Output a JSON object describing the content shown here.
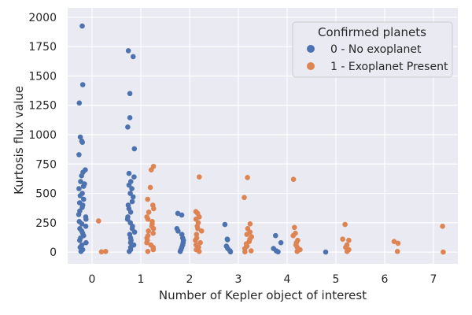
{
  "chart_data": {
    "type": "scatter",
    "title": "",
    "xlabel": "Number of Kepler object of interest",
    "ylabel": "Kurtosis flux value",
    "x_categories": [
      "0",
      "1",
      "2",
      "3",
      "4",
      "5",
      "6",
      "7"
    ],
    "y_ticks": [
      0,
      250,
      500,
      750,
      1000,
      1250,
      1500,
      1750,
      2000
    ],
    "y_tick_labels": [
      "0",
      "250",
      "500",
      "750",
      "1000",
      "1250",
      "1500",
      "1750",
      "2000"
    ],
    "ylim": [
      -100,
      2080
    ],
    "grid": true,
    "legend": {
      "title": "Confirmed planets",
      "placement": "top-right",
      "entries": [
        "0 - No exoplanet",
        "1 - Exoplanet Present"
      ]
    },
    "colors": [
      "#4c72b0",
      "#dd8452"
    ],
    "series": [
      {
        "name": "0 - No exoplanet",
        "category_offset": -0.2,
        "points": [
          [
            0,
            1925
          ],
          [
            0,
            1425
          ],
          [
            0,
            1270
          ],
          [
            0,
            980
          ],
          [
            0,
            945
          ],
          [
            0,
            935
          ],
          [
            0,
            830
          ],
          [
            0,
            700
          ],
          [
            0,
            680
          ],
          [
            0,
            650
          ],
          [
            0,
            600
          ],
          [
            0,
            580
          ],
          [
            0,
            560
          ],
          [
            0,
            540
          ],
          [
            0,
            500
          ],
          [
            0,
            480
          ],
          [
            0,
            450
          ],
          [
            0,
            420
          ],
          [
            0,
            400
          ],
          [
            0,
            380
          ],
          [
            0,
            350
          ],
          [
            0,
            320
          ],
          [
            0,
            300
          ],
          [
            0,
            280
          ],
          [
            0,
            260
          ],
          [
            0,
            240
          ],
          [
            0,
            220
          ],
          [
            0,
            200
          ],
          [
            0,
            180
          ],
          [
            0,
            160
          ],
          [
            0,
            140
          ],
          [
            0,
            120
          ],
          [
            0,
            100
          ],
          [
            0,
            80
          ],
          [
            0,
            60
          ],
          [
            0,
            40
          ],
          [
            0,
            20
          ],
          [
            0,
            5
          ],
          [
            1,
            1715
          ],
          [
            1,
            1665
          ],
          [
            1,
            1350
          ],
          [
            1,
            1145
          ],
          [
            1,
            1065
          ],
          [
            1,
            880
          ],
          [
            1,
            670
          ],
          [
            1,
            640
          ],
          [
            1,
            600
          ],
          [
            1,
            570
          ],
          [
            1,
            540
          ],
          [
            1,
            500
          ],
          [
            1,
            470
          ],
          [
            1,
            430
          ],
          [
            1,
            400
          ],
          [
            1,
            370
          ],
          [
            1,
            340
          ],
          [
            1,
            300
          ],
          [
            1,
            280
          ],
          [
            1,
            250
          ],
          [
            1,
            220
          ],
          [
            1,
            200
          ],
          [
            1,
            170
          ],
          [
            1,
            150
          ],
          [
            1,
            120
          ],
          [
            1,
            100
          ],
          [
            1,
            80
          ],
          [
            1,
            60
          ],
          [
            1,
            40
          ],
          [
            1,
            20
          ],
          [
            1,
            5
          ],
          [
            2,
            330
          ],
          [
            2,
            315
          ],
          [
            2,
            200
          ],
          [
            2,
            180
          ],
          [
            2,
            150
          ],
          [
            2,
            120
          ],
          [
            2,
            100
          ],
          [
            2,
            80
          ],
          [
            2,
            60
          ],
          [
            2,
            40
          ],
          [
            2,
            20
          ],
          [
            2,
            5
          ],
          [
            3,
            235
          ],
          [
            3,
            110
          ],
          [
            3,
            105
          ],
          [
            3,
            50
          ],
          [
            3,
            30
          ],
          [
            3,
            10
          ],
          [
            3,
            2
          ],
          [
            4,
            140
          ],
          [
            4,
            80
          ],
          [
            4,
            30
          ],
          [
            4,
            10
          ],
          [
            4,
            2
          ],
          [
            5,
            0
          ]
        ]
      },
      {
        "name": "1 - Exoplanet Present",
        "category_offset": 0.2,
        "points": [
          [
            0,
            265
          ],
          [
            0,
            5
          ],
          [
            0,
            2
          ],
          [
            1,
            730
          ],
          [
            1,
            700
          ],
          [
            1,
            550
          ],
          [
            1,
            450
          ],
          [
            1,
            400
          ],
          [
            1,
            370
          ],
          [
            1,
            340
          ],
          [
            1,
            300
          ],
          [
            1,
            280
          ],
          [
            1,
            260
          ],
          [
            1,
            240
          ],
          [
            1,
            220
          ],
          [
            1,
            200
          ],
          [
            1,
            180
          ],
          [
            1,
            160
          ],
          [
            1,
            140
          ],
          [
            1,
            120
          ],
          [
            1,
            100
          ],
          [
            1,
            80
          ],
          [
            1,
            60
          ],
          [
            1,
            40
          ],
          [
            1,
            20
          ],
          [
            1,
            5
          ],
          [
            2,
            640
          ],
          [
            2,
            345
          ],
          [
            2,
            330
          ],
          [
            2,
            300
          ],
          [
            2,
            280
          ],
          [
            2,
            250
          ],
          [
            2,
            220
          ],
          [
            2,
            200
          ],
          [
            2,
            180
          ],
          [
            2,
            150
          ],
          [
            2,
            120
          ],
          [
            2,
            100
          ],
          [
            2,
            80
          ],
          [
            2,
            60
          ],
          [
            2,
            40
          ],
          [
            2,
            20
          ],
          [
            2,
            5
          ],
          [
            3,
            635
          ],
          [
            3,
            465
          ],
          [
            3,
            240
          ],
          [
            3,
            200
          ],
          [
            3,
            170
          ],
          [
            3,
            150
          ],
          [
            3,
            130
          ],
          [
            3,
            110
          ],
          [
            3,
            90
          ],
          [
            3,
            70
          ],
          [
            3,
            50
          ],
          [
            3,
            30
          ],
          [
            3,
            10
          ],
          [
            3,
            2
          ],
          [
            4,
            620
          ],
          [
            4,
            210
          ],
          [
            4,
            160
          ],
          [
            4,
            140
          ],
          [
            4,
            100
          ],
          [
            4,
            80
          ],
          [
            4,
            60
          ],
          [
            4,
            40
          ],
          [
            4,
            20
          ],
          [
            4,
            5
          ],
          [
            5,
            235
          ],
          [
            5,
            110
          ],
          [
            5,
            100
          ],
          [
            5,
            60
          ],
          [
            5,
            40
          ],
          [
            5,
            20
          ],
          [
            5,
            5
          ],
          [
            6,
            90
          ],
          [
            6,
            75
          ],
          [
            6,
            5
          ],
          [
            7,
            220
          ],
          [
            7,
            0
          ]
        ]
      }
    ]
  }
}
